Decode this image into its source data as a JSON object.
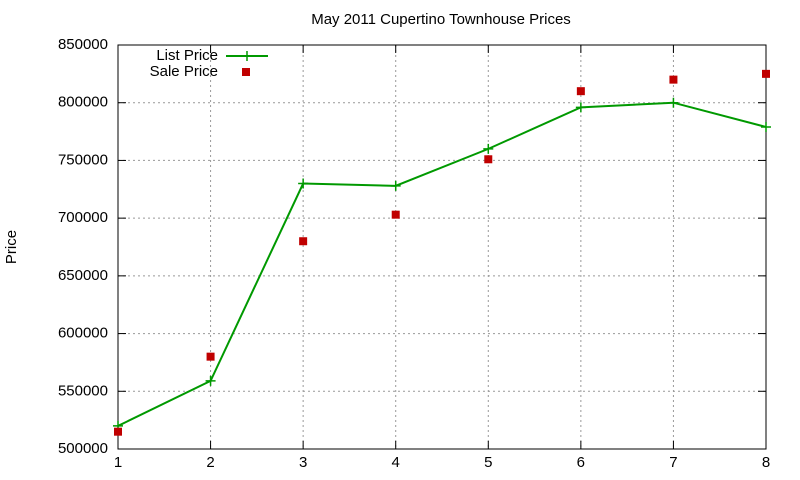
{
  "chart_data": {
    "type": "line",
    "title": "May 2011 Cupertino Townhouse Prices",
    "y_label": "Price",
    "x": [
      1,
      2,
      3,
      4,
      5,
      6,
      7,
      8
    ],
    "series": [
      {
        "name": "List Price",
        "color": "#009900",
        "style": "linespoints",
        "values": [
          520000,
          559000,
          730000,
          728000,
          760000,
          796000,
          800000,
          779000
        ]
      },
      {
        "name": "Sale Price",
        "color": "#c00000",
        "style": "points",
        "values": [
          515000,
          580000,
          680000,
          703000,
          751000,
          810000,
          820000,
          825000
        ]
      }
    ],
    "xlim": [
      1,
      8
    ],
    "xticks": [
      1,
      2,
      3,
      4,
      5,
      6,
      7,
      8
    ],
    "ylim": [
      500000,
      850000
    ],
    "yticks": [
      500000,
      550000,
      600000,
      650000,
      700000,
      750000,
      800000,
      850000
    ],
    "grid": true,
    "legend": "top-left"
  }
}
